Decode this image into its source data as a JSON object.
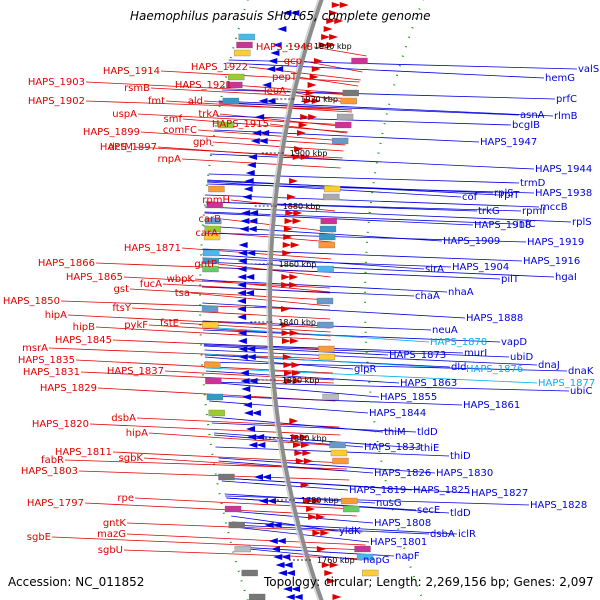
{
  "title": "Haemophilus parasuis SH0165, complete genome",
  "footer": {
    "accession": "Accession: NC_011852",
    "topology": "Topology: circular; Length: 2,269,156 bp; Genes: 2,097"
  },
  "colors": {
    "minus_strand": "#e00000",
    "plus_strand": "#0000dd",
    "highlight": "#00b0ee",
    "backbone": "#8c8c8c",
    "tick": "#009900"
  },
  "ticks": [
    "1940 kbp",
    "1920 kbp",
    "1900 kbp",
    "1880 kbp",
    "1860 kbp",
    "1840 kbp",
    "1820 kbp",
    "1800 kbp",
    "1780 kbp",
    "1760 kbp"
  ],
  "left_genes": [
    "HAPS_1948",
    "gcp",
    "HAPS_1922",
    "pepT",
    "HAPS_1914",
    "leuA",
    "HAPS_1921",
    "rsmB",
    "HAPS_1903",
    "ald",
    "fmt",
    "trkA",
    "HAPS_1902",
    "uspA",
    "smf",
    "HAPS_1915",
    "comFC",
    "HAPS_1899",
    "gph",
    "dctM",
    "HAPS_1897",
    "rnpA",
    "rpmH",
    "carB",
    "carA",
    "HAPS_1871",
    "gntP",
    "HAPS_1866",
    "HAPS_1865",
    "wbpK",
    "fucA",
    "gst",
    "tsa",
    "HAPS_1850",
    "ftsY",
    "hipA",
    "fstE",
    "pykF",
    "hipB",
    "HAPS_1845",
    "msrA",
    "HAPS_1835",
    "HAPS_1837",
    "HAPS_1831",
    "HAPS_1829",
    "dsbA",
    "HAPS_1820",
    "hipA",
    "fabR",
    "HAPS_1811",
    "sgbK",
    "HAPS_1803",
    "rpe",
    "HAPS_1797",
    "gntK",
    "mazG",
    "sgbE",
    "sgbU"
  ],
  "right_genes": [
    "valS",
    "1940 kbp",
    "hemG",
    "prfC",
    "asnA",
    "rlmB",
    "bcgIB",
    "HAPS_1947",
    "HAPS_1944",
    "trmD",
    "rplS",
    "rplT",
    "HAPS_1938",
    "mccB",
    "cof",
    "rpmI",
    "infC",
    "rplS",
    "trkG",
    "HAPS_1918",
    "HAPS_1909",
    "HAPS_1919",
    "HAPS_1916",
    "sirA",
    "HAPS_1904",
    "pilT",
    "hgaI",
    "chaA",
    "nhaA",
    "HAPS_1888",
    "neuA",
    "vapD",
    "HAPS_1878",
    "murI",
    "ubiD",
    "dnaJ",
    "HAPS_1873",
    "dld",
    "HAPS_1876",
    "dnaK",
    "glpR",
    "HAPS_1877",
    "ubiC",
    "HAPS_1863",
    "HAPS_1855",
    "HAPS_1861",
    "HAPS_1844",
    "thiM",
    "tldD",
    "HAPS_1833",
    "thiE",
    "thiD",
    "HAPS_1826",
    "HAPS_1830",
    "HAPS_1819",
    "HAPS_1825",
    "HAPS_1827",
    "nusG",
    "secE",
    "tldD",
    "HAPS_1828",
    "HAPS_1808",
    "yidK",
    "dsbA",
    "iclR",
    "HAPS_1801",
    "napF",
    "napG"
  ],
  "highlighted_genes": [
    "HAPS_1878",
    "HAPS_1876",
    "HAPS_1877"
  ]
}
